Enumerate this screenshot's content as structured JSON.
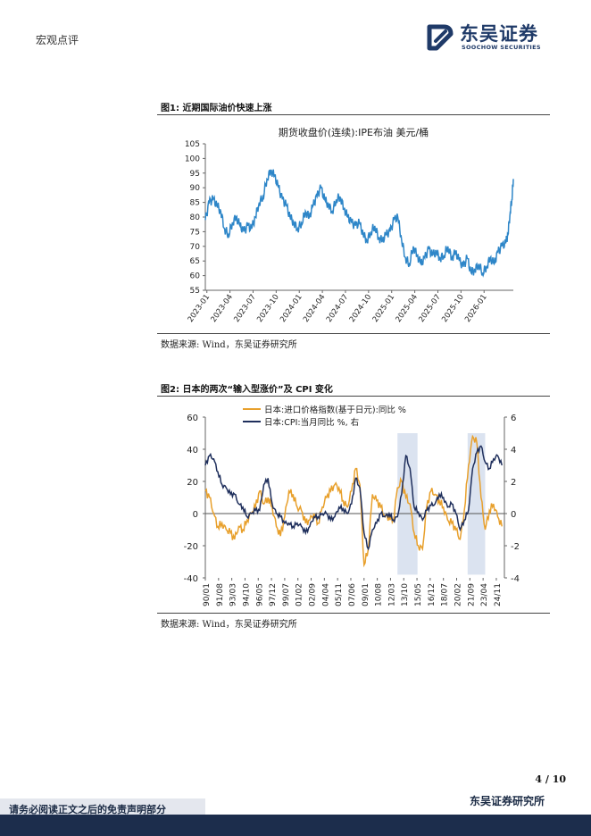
{
  "header": {
    "section": "宏观点评",
    "brand_cn": "东吴证券",
    "brand_en": "SOOCHOW SECURITIES"
  },
  "figure1": {
    "label": "图1:  近期国际油价快速上涨",
    "source": "数据来源:  Wind，东吴证券研究所"
  },
  "figure2": {
    "label": "图2:  日本的两次“输入型涨价”及 CPI 变化",
    "source": "数据来源:  Wind，东吴证券研究所"
  },
  "footer": {
    "page": "4  /  10",
    "company": "东吴证券研究所",
    "disclaimer": "请务必阅读正文之后的免责声明部分"
  },
  "colors": {
    "oil": "#2e86c8",
    "import_price": "#e8a02c",
    "cpi": "#1f2f5c",
    "shade": "#dbe3f0"
  },
  "chart_data": [
    {
      "type": "line",
      "title": "期货收盘价(连续):IPE布油  美元/桶",
      "xlabel": "",
      "ylabel": "",
      "ylim": [
        55,
        105
      ],
      "yticks": [
        55,
        60,
        65,
        70,
        75,
        80,
        85,
        90,
        95,
        100,
        105
      ],
      "categories": [
        "2023-01",
        "2023-04",
        "2023-07",
        "2023-10",
        "2024-01",
        "2024-04",
        "2024-07",
        "2024-10",
        "2025-01",
        "2025-04",
        "2025-07",
        "2025-10",
        "2026-01"
      ],
      "grid": false,
      "series": [
        {
          "name": "IPE布油",
          "x": [
            0,
            0.5,
            1,
            1.5,
            2,
            2.5,
            3,
            3.5,
            4,
            4.5,
            5,
            5.5,
            6,
            6.5,
            7,
            7.5,
            8,
            8.5,
            9,
            9.5,
            10,
            10.5,
            11,
            11.5,
            12,
            12.5,
            13,
            13.5,
            14,
            14.5,
            15,
            15.5,
            16,
            16.5,
            17,
            17.5,
            18,
            18.5,
            19,
            19.5,
            20,
            20.5,
            21,
            21.5,
            22,
            22.5,
            23,
            23.5,
            24,
            24.5,
            25,
            25.5,
            26,
            26.5,
            27,
            27.5,
            28,
            28.5,
            29,
            29.5,
            30,
            30.5,
            31,
            31.5,
            32,
            32.5,
            33,
            33.5,
            34,
            34.5,
            35,
            35.5,
            36,
            36.5,
            37,
            37.5,
            38,
            38.5,
            39,
            39.3,
            39.6,
            39.8,
            40
          ],
          "values": [
            79,
            85,
            86,
            84,
            82,
            76,
            74,
            78,
            80,
            77,
            75,
            77,
            76,
            80,
            85,
            87,
            93,
            96,
            94,
            90,
            86,
            84,
            80,
            78,
            76,
            78,
            82,
            80,
            84,
            87,
            90,
            86,
            84,
            82,
            86,
            87,
            83,
            80,
            78,
            77,
            78,
            74,
            72,
            75,
            77,
            73,
            72,
            74,
            75,
            79,
            80,
            72,
            66,
            64,
            70,
            67,
            64,
            66,
            69,
            67,
            68,
            66,
            67,
            70,
            66,
            68,
            65,
            63,
            66,
            61,
            62,
            64,
            61,
            63,
            66,
            64,
            68,
            70,
            71,
            74,
            82,
            86,
            93
          ]
        }
      ]
    },
    {
      "type": "line",
      "title": "",
      "xlabel": "",
      "ylabel": "",
      "ylim": [
        -40,
        60
      ],
      "y2lim": [
        -4,
        6
      ],
      "yticks": [
        -40,
        -20,
        0,
        20,
        40,
        60
      ],
      "y2ticks": [
        -4,
        -2,
        0,
        2,
        4,
        6
      ],
      "categories": [
        "90/01",
        "91/08",
        "93/03",
        "94/10",
        "96/05",
        "97/12",
        "99/07",
        "01/02",
        "02/09",
        "04/04",
        "05/11",
        "07/06",
        "09/01",
        "10/08",
        "12/03",
        "13/10",
        "15/05",
        "16/12",
        "18/07",
        "20/02",
        "21/09",
        "23/04",
        "24/11"
      ],
      "legend": "top-center",
      "shaded_periods": [
        "13/01–15/05",
        "21/06–23/06"
      ],
      "series": [
        {
          "name": "日本:进口价格指数(基于日元):同比  %",
          "axis": "left",
          "x": [
            1990,
            1990.5,
            1991,
            1991.5,
            1992,
            1992.5,
            1993,
            1993.5,
            1994,
            1994.5,
            1995,
            1995.5,
            1996,
            1996.5,
            1997,
            1997.5,
            1998,
            1998.5,
            1999,
            1999.5,
            2000,
            2000.5,
            2001,
            2001.5,
            2002,
            2002.5,
            2003,
            2003.5,
            2004,
            2004.5,
            2005,
            2005.5,
            2006,
            2006.5,
            2007,
            2007.5,
            2008,
            2008.5,
            2009,
            2009.5,
            2010,
            2010.5,
            2011,
            2011.5,
            2012,
            2012.5,
            2013,
            2013.5,
            2014,
            2014.5,
            2015,
            2015.5,
            2016,
            2016.5,
            2017,
            2017.5,
            2018,
            2018.5,
            2019,
            2019.5,
            2020,
            2020.5,
            2021,
            2021.5,
            2022,
            2022.5,
            2023,
            2023.5,
            2024,
            2024.5,
            2025,
            2025.5
          ],
          "values": [
            14,
            10,
            0,
            -8,
            -6,
            -10,
            -12,
            -16,
            -8,
            -10,
            -4,
            0,
            4,
            14,
            6,
            10,
            4,
            -8,
            -14,
            -2,
            14,
            12,
            4,
            2,
            -6,
            -4,
            0,
            -6,
            4,
            10,
            14,
            18,
            16,
            8,
            4,
            14,
            28,
            18,
            -32,
            -22,
            12,
            8,
            4,
            -2,
            -2,
            -4,
            16,
            20,
            10,
            6,
            -12,
            -20,
            -22,
            4,
            14,
            12,
            8,
            4,
            -4,
            -6,
            -10,
            -16,
            2,
            30,
            48,
            44,
            10,
            -10,
            2,
            6,
            -2,
            -8
          ]
        },
        {
          "name": "日本:CPI:当月同比  %, 右",
          "axis": "right",
          "x": [
            1990,
            1990.5,
            1991,
            1991.5,
            1992,
            1992.5,
            1993,
            1993.5,
            1994,
            1994.5,
            1995,
            1995.5,
            1996,
            1996.5,
            1997,
            1997.5,
            1998,
            1998.5,
            1999,
            1999.5,
            2000,
            2000.5,
            2001,
            2001.5,
            2002,
            2002.5,
            2003,
            2003.5,
            2004,
            2004.5,
            2005,
            2005.5,
            2006,
            2006.5,
            2007,
            2007.5,
            2008,
            2008.5,
            2009,
            2009.5,
            2010,
            2010.5,
            2011,
            2011.5,
            2012,
            2012.5,
            2013,
            2013.5,
            2014,
            2014.5,
            2015,
            2015.5,
            2016,
            2016.5,
            2017,
            2017.5,
            2018,
            2018.5,
            2019,
            2019.5,
            2020,
            2020.5,
            2021,
            2021.5,
            2022,
            2022.5,
            2023,
            2023.5,
            2024,
            2024.5,
            2025,
            2025.5
          ],
          "values": [
            3,
            3.6,
            3.4,
            2.6,
            1.8,
            1.6,
            1.2,
            1.2,
            0.6,
            0.4,
            -0.2,
            0,
            0.2,
            0.2,
            1.8,
            2.2,
            0.6,
            0,
            -0.2,
            -0.6,
            -0.6,
            -0.8,
            -0.6,
            -0.8,
            -1.2,
            -0.8,
            -0.2,
            -0.2,
            0,
            0,
            -0.4,
            -0.2,
            0.4,
            0.3,
            0,
            0.6,
            2.2,
            1.6,
            -1.2,
            -2.2,
            -1.0,
            -0.6,
            0,
            -0.2,
            0,
            -0.4,
            -0.2,
            1.2,
            3.6,
            2.8,
            0.4,
            0.1,
            -0.4,
            0.2,
            0.5,
            0.6,
            1.2,
            1.0,
            0.4,
            0.6,
            0,
            -1.0,
            -0.4,
            0.2,
            2.8,
            3.8,
            4.2,
            3.2,
            2.8,
            3.4,
            3.6,
            3.0
          ]
        }
      ]
    }
  ]
}
